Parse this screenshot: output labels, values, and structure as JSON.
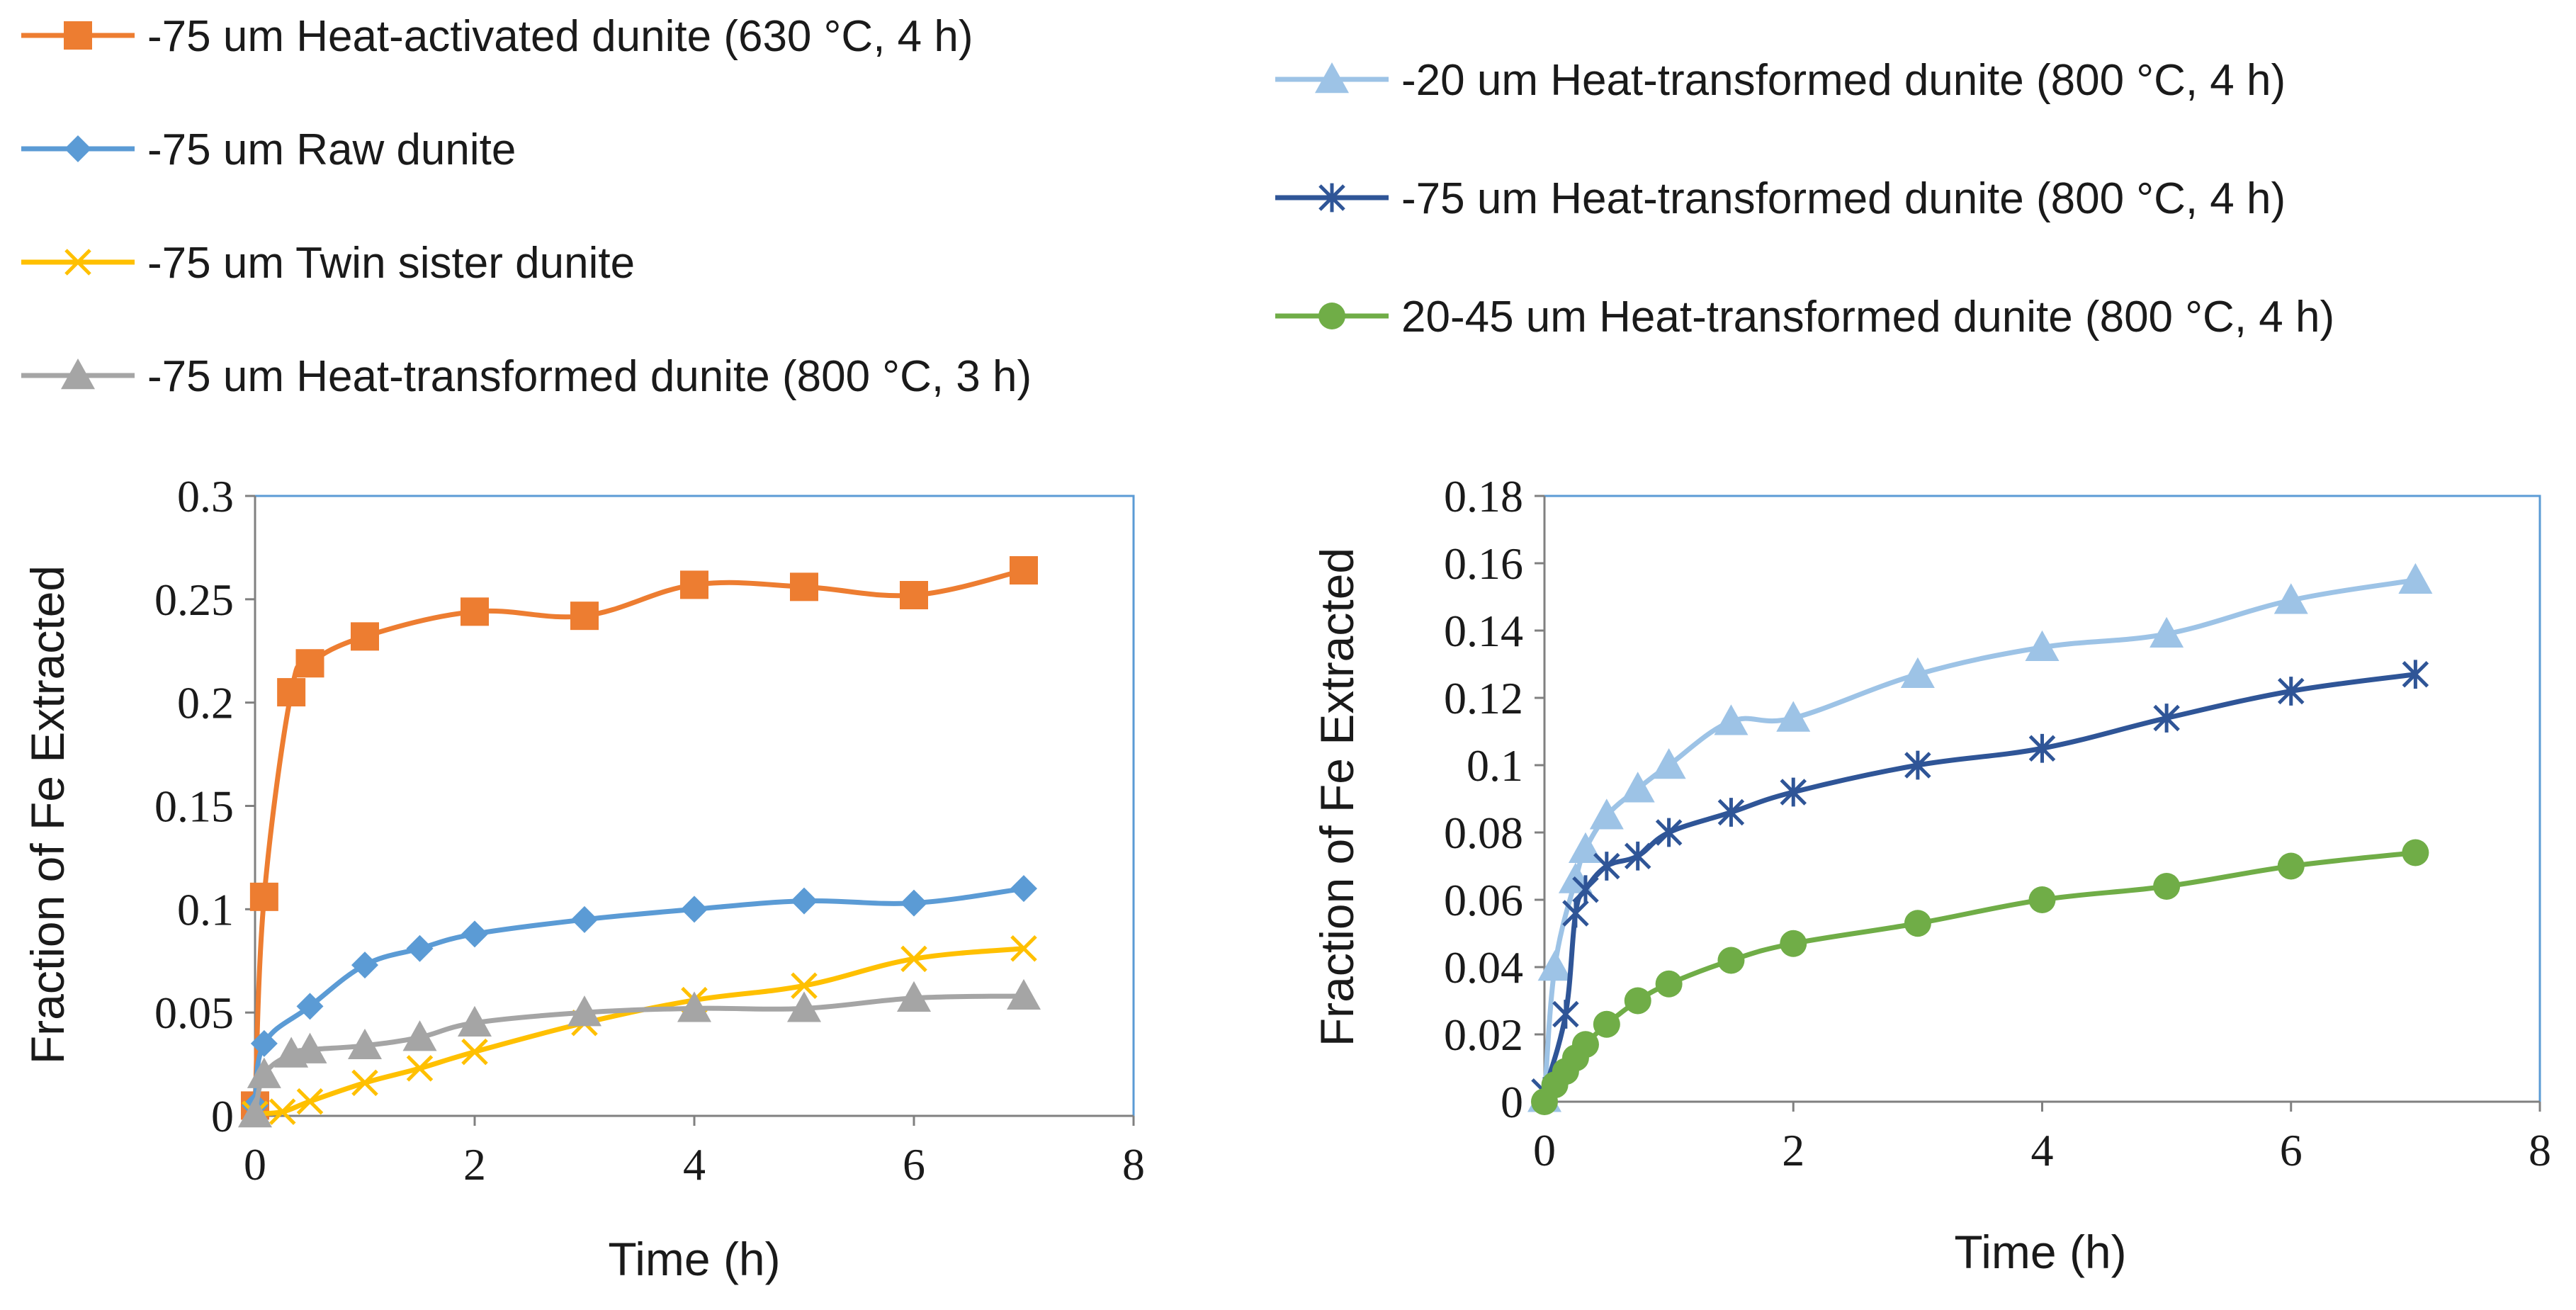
{
  "chart_data": [
    {
      "type": "line",
      "xlabel": "Time (h)",
      "ylabel": "Fraction of Fe Extracted",
      "xlim": [
        0,
        8
      ],
      "ylim": [
        0,
        0.3
      ],
      "xticks": [
        "0",
        "2",
        "4",
        "6",
        "8"
      ],
      "yticks": [
        "0",
        "0.05",
        "0.1",
        "0.15",
        "0.2",
        "0.25",
        "0.3"
      ],
      "grid": false,
      "legend_position": "top",
      "series": [
        {
          "name": "-75 um Heat-activated dunite (630 °C, 4 h)",
          "color": "#ED7D31",
          "marker": "square",
          "x": [
            0,
            0.083,
            0.33,
            0.5,
            1,
            2,
            3,
            4,
            5,
            6,
            7
          ],
          "y": [
            0.005,
            0.106,
            0.205,
            0.219,
            0.232,
            0.244,
            0.242,
            0.257,
            0.256,
            0.252,
            0.264
          ]
        },
        {
          "name": "-75 um Raw dunite",
          "color": "#5B9BD5",
          "marker": "diamond",
          "x": [
            0,
            0.083,
            0.5,
            1,
            1.5,
            2,
            3,
            4,
            5,
            6,
            7
          ],
          "y": [
            0.005,
            0.035,
            0.053,
            0.073,
            0.081,
            0.088,
            0.095,
            0.1,
            0.104,
            0.103,
            0.11
          ]
        },
        {
          "name": "-75 um Twin sister dunite",
          "color": "#FFC000",
          "marker": "x",
          "x": [
            0,
            0.25,
            0.5,
            1,
            1.5,
            2,
            3,
            4,
            5,
            6,
            7
          ],
          "y": [
            0.001,
            0.002,
            0.007,
            0.016,
            0.023,
            0.031,
            0.045,
            0.056,
            0.063,
            0.076,
            0.081
          ]
        },
        {
          "name": "-75 um Heat-transformed dunite (800 °C, 3 h)",
          "color": "#A5A5A5",
          "marker": "triangle",
          "x": [
            0,
            0.083,
            0.33,
            0.5,
            1,
            1.5,
            2,
            3,
            4,
            5,
            6,
            7
          ],
          "y": [
            0.001,
            0.02,
            0.03,
            0.032,
            0.034,
            0.038,
            0.045,
            0.05,
            0.052,
            0.052,
            0.057,
            0.058
          ]
        }
      ]
    },
    {
      "type": "line",
      "xlabel": "Time (h)",
      "ylabel": "Fraction of Fe Extracted",
      "xlim": [
        0,
        8
      ],
      "ylim": [
        0,
        0.18
      ],
      "xticks": [
        "0",
        "2",
        "4",
        "6",
        "8"
      ],
      "yticks": [
        "0",
        "0.02",
        "0.04",
        "0.06",
        "0.08",
        "0.1",
        "0.12",
        "0.14",
        "0.16",
        "0.18"
      ],
      "grid": false,
      "legend_position": "top",
      "series": [
        {
          "name": "-20 um Heat-transformed dunite (800 °C, 4 h)",
          "color": "#9DC3E6",
          "marker": "triangle",
          "x": [
            0,
            0.083,
            0.25,
            0.33,
            0.5,
            0.75,
            1,
            1.5,
            2,
            3,
            4,
            5,
            6,
            7
          ],
          "y": [
            0.001,
            0.04,
            0.066,
            0.075,
            0.085,
            0.093,
            0.1,
            0.113,
            0.114,
            0.127,
            0.135,
            0.139,
            0.149,
            0.155
          ]
        },
        {
          "name": "-75 um Heat-transformed dunite (800 °C, 4 h)",
          "color": "#2F5597",
          "marker": "asterisk",
          "x": [
            0,
            0.17,
            0.25,
            0.33,
            0.5,
            0.75,
            1,
            1.5,
            2,
            3,
            4,
            5,
            6,
            7
          ],
          "y": [
            0.003,
            0.026,
            0.056,
            0.063,
            0.07,
            0.073,
            0.08,
            0.086,
            0.092,
            0.1,
            0.105,
            0.114,
            0.122,
            0.127
          ]
        },
        {
          "name": "20-45 um Heat-transformed dunite (800 °C, 4 h)",
          "color": "#70AD47",
          "marker": "circle",
          "x": [
            0,
            0.083,
            0.17,
            0.25,
            0.33,
            0.5,
            0.75,
            1,
            1.5,
            2,
            3,
            4,
            5,
            6,
            7
          ],
          "y": [
            0.0,
            0.005,
            0.009,
            0.013,
            0.017,
            0.023,
            0.03,
            0.035,
            0.042,
            0.047,
            0.053,
            0.06,
            0.064,
            0.07,
            0.074
          ]
        }
      ]
    }
  ]
}
